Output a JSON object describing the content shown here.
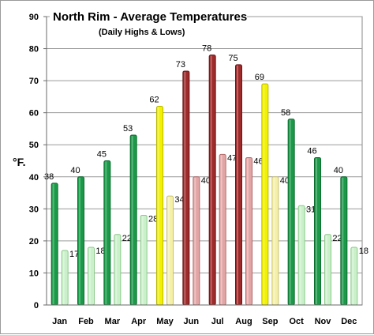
{
  "chart_data": {
    "type": "bar",
    "title": "North Rim - Average Temperatures",
    "subtitle": "(Daily Highs & Lows)",
    "xlabel": "",
    "ylabel": "°F.",
    "ylim": [
      0,
      90
    ],
    "yticks": [
      0,
      10,
      20,
      30,
      40,
      50,
      60,
      70,
      80,
      90
    ],
    "grid": true,
    "legend": "none",
    "categories": [
      "Jan",
      "Feb",
      "Mar",
      "Apr",
      "May",
      "Jun",
      "Jul",
      "Aug",
      "Sep",
      "Oct",
      "Nov",
      "Dec"
    ],
    "series": [
      {
        "values": [
          38,
          40,
          45,
          53,
          62,
          73,
          78,
          75,
          69,
          58,
          46,
          40
        ]
      },
      {
        "values": [
          17,
          18,
          22,
          28,
          34,
          40,
          47,
          46,
          40,
          31,
          22,
          18
        ]
      }
    ],
    "season_colors": {
      "winter_high": "#1a9a48",
      "winter_low": "#c9f0c9",
      "spring_fall_high": "#f2f200",
      "spring_fall_low": "#f5f0a8",
      "summer_high": "#9e2a2a",
      "summer_low": "#e2a4a4"
    },
    "month_seasons": [
      "winter",
      "winter",
      "winter",
      "winter",
      "spring_fall",
      "summer",
      "summer",
      "summer",
      "spring_fall",
      "winter",
      "winter",
      "winter"
    ]
  }
}
